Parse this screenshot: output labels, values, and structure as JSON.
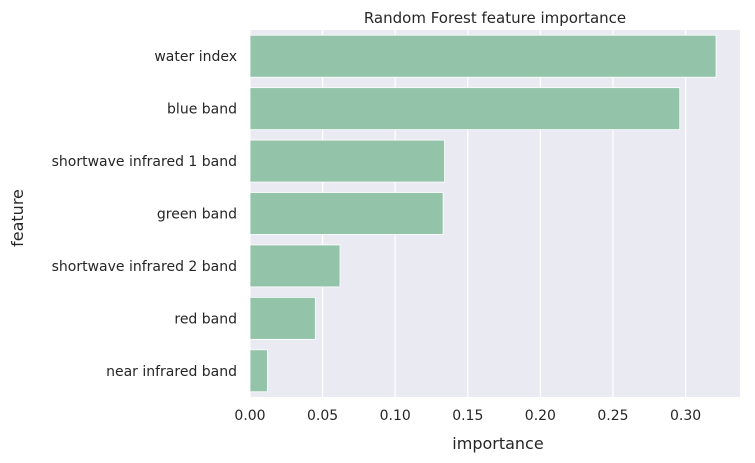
{
  "chart_data": {
    "type": "bar",
    "orientation": "horizontal",
    "title": "Random Forest feature importance",
    "xlabel": "importance",
    "ylabel": "feature",
    "categories": [
      "water index",
      "blue band",
      "shortwave infrared 1 band",
      "green band",
      "shortwave infrared 2 band",
      "red band",
      "near infrared band"
    ],
    "values": [
      0.321,
      0.296,
      0.134,
      0.133,
      0.062,
      0.045,
      0.012
    ],
    "xlim": [
      0.0,
      0.3375
    ],
    "xticks": [
      0.0,
      0.05,
      0.1,
      0.15,
      0.2,
      0.25,
      0.3
    ],
    "xtick_labels": [
      "0.00",
      "0.05",
      "0.10",
      "0.15",
      "0.20",
      "0.25",
      "0.30"
    ],
    "grid": true,
    "legend": "none",
    "bar_color": "#93c4a9",
    "background_color": "#eaeaf2",
    "grid_color": "#ffffff"
  }
}
